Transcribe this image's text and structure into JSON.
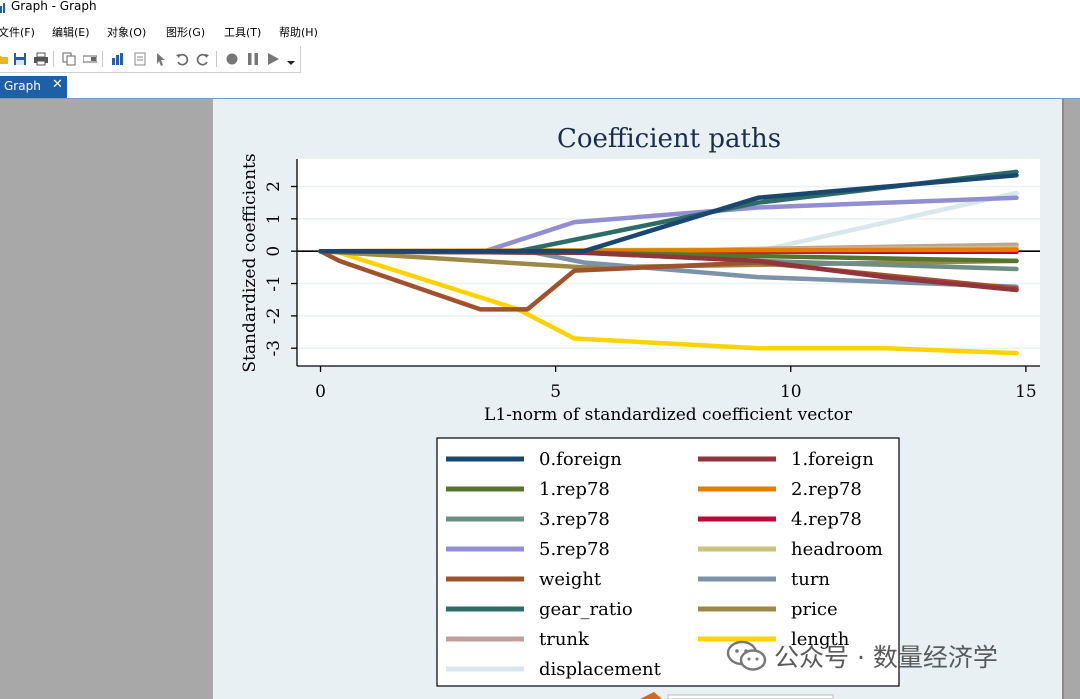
{
  "window": {
    "title": "Graph - Graph"
  },
  "menu": [
    {
      "label": "文件(F)"
    },
    {
      "label": "编辑(E)"
    },
    {
      "label": "对象(O)"
    },
    {
      "label": "图形(G)"
    },
    {
      "label": "工具(T)"
    },
    {
      "label": "帮助(H)"
    }
  ],
  "toolbar": {
    "icons": [
      "open-icon",
      "save-icon",
      "print-icon",
      "copy-icon",
      "rename-icon",
      "graph-editor-icon",
      "data-editor-icon",
      "pointer-icon",
      "undo-icon",
      "redo-icon",
      "record-icon",
      "pause-icon",
      "play-icon",
      "dropdown-arrow-icon"
    ]
  },
  "tab": {
    "label": "Graph",
    "close": "✕"
  },
  "colors": {
    "tab": "#1f5fa8",
    "workspace": "#a8a8a8",
    "page": "#e9f0f4"
  },
  "watermark": {
    "text": "公众号 · 数量经济学"
  },
  "chart_data": {
    "type": "line",
    "title": "Coefficient paths",
    "xlabel": "L1-norm of standardized coefficient vector",
    "ylabel": "Standardized coefficients",
    "xlim": [
      -0.5,
      15.3
    ],
    "ylim": [
      -3.55,
      2.85
    ],
    "xticks": [
      0,
      5,
      10,
      15
    ],
    "yticks": [
      -3,
      -2,
      -1,
      0,
      1,
      2
    ],
    "grid": true,
    "zero_line": true,
    "legend_position": "bottom",
    "series": [
      {
        "name": "0.foreign",
        "color": "#1a476f",
        "x": [
          0,
          5.6,
          9.3,
          14.8
        ],
        "y": [
          0,
          0,
          1.65,
          2.35
        ]
      },
      {
        "name": "1.foreign",
        "color": "#90353b",
        "x": [
          0,
          5.6,
          9.3,
          12,
          14.8
        ],
        "y": [
          0,
          -0.05,
          -0.3,
          -0.8,
          -1.2
        ]
      },
      {
        "name": "1.rep78",
        "color": "#55752f",
        "x": [
          0,
          5.6,
          14.8
        ],
        "y": [
          0,
          -0.05,
          -0.3
        ]
      },
      {
        "name": "2.rep78",
        "color": "#e37e00",
        "x": [
          0,
          14.8
        ],
        "y": [
          0,
          0.05
        ]
      },
      {
        "name": "3.rep78",
        "color": "#6e8e84",
        "x": [
          0,
          5.6,
          9.3,
          14.8
        ],
        "y": [
          0,
          -0.05,
          -0.3,
          -0.55
        ]
      },
      {
        "name": "4.rep78",
        "color": "#c10534",
        "x": [
          0,
          14.8
        ],
        "y": [
          0,
          -0.02
        ]
      },
      {
        "name": "5.rep78",
        "color": "#938dd2",
        "x": [
          0,
          3.5,
          5.4,
          9.3,
          14.8
        ],
        "y": [
          0,
          0,
          0.9,
          1.35,
          1.65
        ]
      },
      {
        "name": "headroom",
        "color": "#cac27e",
        "x": [
          0,
          9.3,
          14.8
        ],
        "y": [
          0,
          0.05,
          0.1
        ]
      },
      {
        "name": "weight",
        "color": "#a0522d",
        "x": [
          0,
          0.4,
          3.4,
          4.4,
          5.4,
          9.3,
          14.8
        ],
        "y": [
          0,
          -0.3,
          -1.8,
          -1.8,
          -0.6,
          -0.35,
          -1.15
        ]
      },
      {
        "name": "turn",
        "color": "#7b92a8",
        "x": [
          0,
          4.4,
          5.6,
          9.3,
          14.8
        ],
        "y": [
          0,
          0,
          -0.35,
          -0.8,
          -1.1
        ]
      },
      {
        "name": "gear_ratio",
        "color": "#2d6d66",
        "x": [
          0,
          4.2,
          9.3,
          14.8
        ],
        "y": [
          0,
          0,
          1.5,
          2.45
        ]
      },
      {
        "name": "price",
        "color": "#9c8847",
        "x": [
          0,
          5.6,
          14.8
        ],
        "y": [
          0,
          -0.5,
          -0.3
        ]
      },
      {
        "name": "trunk",
        "color": "#bfa19c",
        "x": [
          0,
          5.6,
          14.8
        ],
        "y": [
          0,
          -0.02,
          0.2
        ]
      },
      {
        "name": "length",
        "color": "#ffd200",
        "x": [
          0,
          0.3,
          4.2,
          5.4,
          9.3,
          12,
          14.8
        ],
        "y": [
          0,
          0,
          -1.8,
          -2.7,
          -3.0,
          -3.0,
          -3.15
        ]
      },
      {
        "name": "displacement",
        "color": "#d9e6eb",
        "x": [
          0,
          9.3,
          14.8
        ],
        "y": [
          0,
          0,
          1.8
        ]
      }
    ]
  }
}
